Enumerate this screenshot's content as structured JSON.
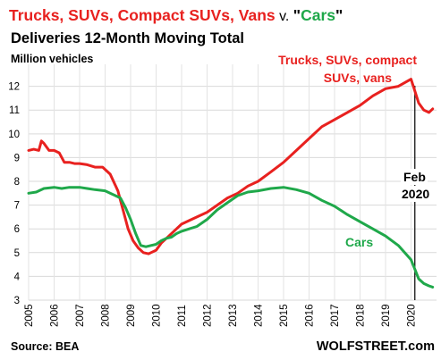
{
  "chart_data": {
    "type": "line",
    "title_parts": [
      {
        "text": "Trucks, SUVs, Compact SUVs, Vans",
        "color": "#e8211f",
        "bold": true
      },
      {
        "text": " v. ",
        "color": "#000000",
        "bold": false
      },
      {
        "text": "\"",
        "color": "#000000",
        "bold": true
      },
      {
        "text": "Cars",
        "color": "#1fa84a",
        "bold": true
      },
      {
        "text": "\"",
        "color": "#000000",
        "bold": true
      }
    ],
    "subtitle": "Deliveries 12-Month Moving Total",
    "ylabel": "Million vehicles",
    "xlabel": "",
    "xlim": [
      2005,
      2021
    ],
    "ylim": [
      3,
      12.7
    ],
    "yticks": [
      3,
      4,
      5,
      6,
      7,
      8,
      9,
      10,
      11,
      12
    ],
    "xticks": [
      "2005",
      "2006",
      "2007",
      "2008",
      "2009",
      "2010",
      "2011",
      "2012",
      "2013",
      "2014",
      "2015",
      "2016",
      "2017",
      "2018",
      "2019",
      "2020"
    ],
    "grid": true,
    "series": [
      {
        "name": "Trucks, SUVs, compact SUVs, vans",
        "color": "#e8211f",
        "x": [
          2005.0,
          2005.2,
          2005.4,
          2005.5,
          2005.6,
          2005.8,
          2006.0,
          2006.2,
          2006.4,
          2006.6,
          2006.8,
          2007.0,
          2007.3,
          2007.6,
          2007.9,
          2008.2,
          2008.5,
          2008.7,
          2008.9,
          2009.1,
          2009.3,
          2009.5,
          2009.7,
          2009.8,
          2010.0,
          2010.2,
          2010.5,
          2010.8,
          2011.0,
          2011.3,
          2011.6,
          2012.0,
          2012.4,
          2012.8,
          2013.2,
          2013.6,
          2014.0,
          2014.5,
          2015.0,
          2015.5,
          2016.0,
          2016.5,
          2017.0,
          2017.5,
          2018.0,
          2018.5,
          2019.0,
          2019.5,
          2020.0,
          2020.15,
          2020.3,
          2020.5,
          2020.7,
          2020.85
        ],
        "values": [
          9.3,
          9.35,
          9.3,
          9.7,
          9.6,
          9.3,
          9.3,
          9.2,
          8.8,
          8.8,
          8.75,
          8.75,
          8.7,
          8.6,
          8.6,
          8.3,
          7.6,
          6.8,
          6.0,
          5.5,
          5.2,
          5.0,
          4.95,
          5.0,
          5.1,
          5.4,
          5.7,
          6.0,
          6.2,
          6.35,
          6.5,
          6.7,
          7.0,
          7.3,
          7.5,
          7.8,
          8.0,
          8.4,
          8.8,
          9.3,
          9.8,
          10.3,
          10.6,
          10.9,
          11.2,
          11.6,
          11.9,
          12.0,
          12.3,
          11.8,
          11.3,
          11.0,
          10.9,
          11.05
        ]
      },
      {
        "name": "Cars",
        "color": "#1fa84a",
        "x": [
          2005.0,
          2005.3,
          2005.6,
          2006.0,
          2006.3,
          2006.6,
          2007.0,
          2007.3,
          2007.6,
          2008.0,
          2008.3,
          2008.6,
          2008.8,
          2009.0,
          2009.2,
          2009.4,
          2009.6,
          2009.8,
          2010.0,
          2010.2,
          2010.4,
          2010.6,
          2010.8,
          2011.0,
          2011.3,
          2011.6,
          2012.0,
          2012.4,
          2012.8,
          2013.2,
          2013.6,
          2014.0,
          2014.5,
          2015.0,
          2015.5,
          2016.0,
          2016.5,
          2017.0,
          2017.5,
          2018.0,
          2018.5,
          2019.0,
          2019.5,
          2020.0,
          2020.15,
          2020.3,
          2020.5,
          2020.7,
          2020.85
        ],
        "values": [
          7.5,
          7.55,
          7.7,
          7.75,
          7.7,
          7.75,
          7.75,
          7.7,
          7.65,
          7.6,
          7.45,
          7.3,
          6.9,
          6.4,
          5.8,
          5.3,
          5.25,
          5.3,
          5.35,
          5.5,
          5.6,
          5.65,
          5.8,
          5.9,
          6.0,
          6.1,
          6.4,
          6.8,
          7.1,
          7.4,
          7.55,
          7.6,
          7.7,
          7.75,
          7.65,
          7.5,
          7.2,
          6.95,
          6.6,
          6.3,
          6.0,
          5.7,
          5.3,
          4.7,
          4.3,
          3.9,
          3.7,
          3.6,
          3.55
        ]
      }
    ],
    "annotations": [
      {
        "id": "trucks-line1",
        "text": "Trucks, SUVs, compact",
        "color": "#e8211f"
      },
      {
        "id": "trucks-line2",
        "text": "SUVs, vans",
        "color": "#e8211f"
      },
      {
        "id": "cars",
        "text": "Cars",
        "color": "#1fa84a"
      },
      {
        "id": "feb-line1",
        "text": "Feb",
        "color": "#000000"
      },
      {
        "id": "feb-line2",
        "text": "2020",
        "color": "#000000"
      }
    ],
    "vline_x": 2020.15
  },
  "source": "Source: BEA",
  "brand": "WOLFSTREET.com"
}
